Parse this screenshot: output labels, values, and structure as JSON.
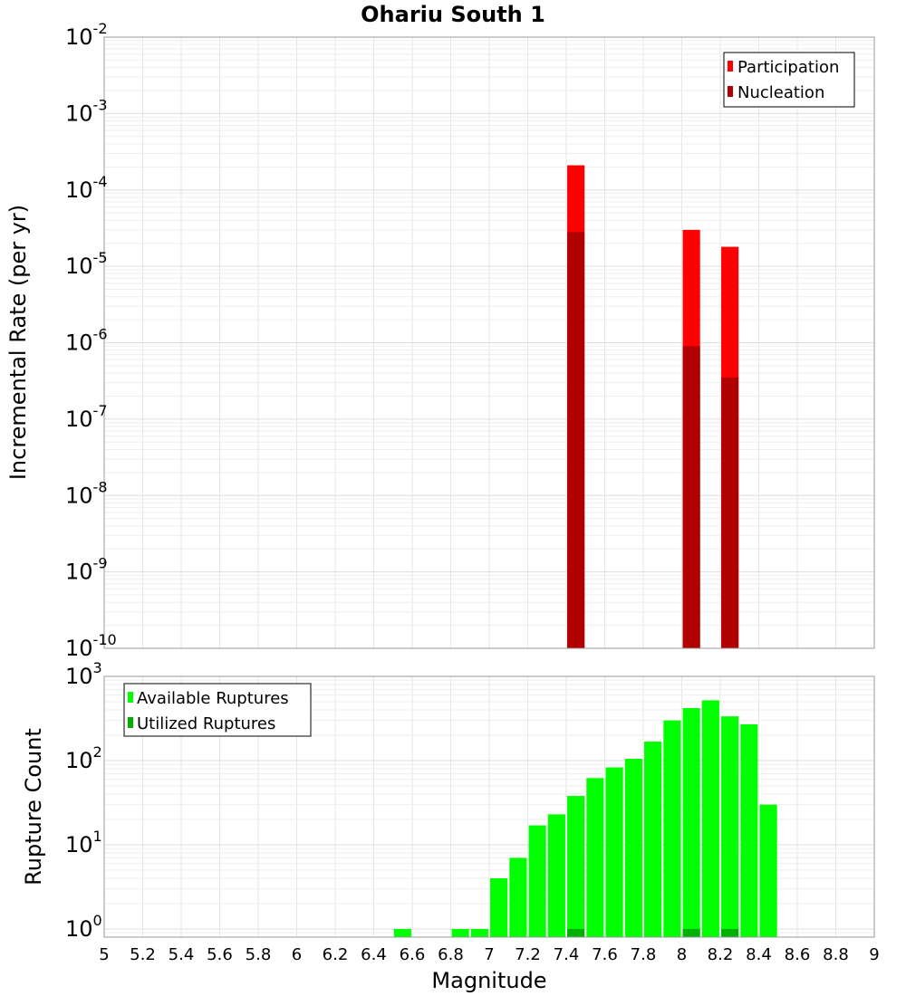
{
  "chart_data": [
    {
      "type": "bar",
      "title": "Ohariu South 1",
      "ylabel": "Incremental Rate (per yr)",
      "yscale": "log",
      "ylim": [
        1e-10,
        0.01
      ],
      "xlim": [
        5,
        9
      ],
      "bar_width": 0.1,
      "grid": true,
      "legend_position": "top-right",
      "y_ticks": [
        {
          "base": "10",
          "exp": "-2"
        },
        {
          "base": "10",
          "exp": "-3"
        },
        {
          "base": "10",
          "exp": "-4"
        },
        {
          "base": "10",
          "exp": "-5"
        },
        {
          "base": "10",
          "exp": "-6"
        },
        {
          "base": "10",
          "exp": "-7"
        },
        {
          "base": "10",
          "exp": "-8"
        },
        {
          "base": "10",
          "exp": "-9"
        },
        {
          "base": "10",
          "exp": "-10"
        }
      ],
      "series": [
        {
          "name": "Participation",
          "color": "#ff0000",
          "x": [
            7.45,
            8.05,
            8.25
          ],
          "values": [
            0.00021,
            3e-05,
            1.8e-05
          ]
        },
        {
          "name": "Nucleation",
          "color": "#b00000",
          "x": [
            7.45,
            8.05,
            8.25
          ],
          "values": [
            2.8e-05,
            9e-07,
            3.5e-07
          ]
        }
      ]
    },
    {
      "type": "bar",
      "ylabel": "Rupture Count",
      "xlabel": "Magnitude",
      "yscale": "log",
      "ylim": [
        0.8,
        1000
      ],
      "xlim": [
        5,
        9
      ],
      "bar_width": 0.1,
      "grid": true,
      "legend_position": "top-left",
      "x_ticks": [
        "5",
        "5.2",
        "5.4",
        "5.6",
        "5.8",
        "6",
        "6.2",
        "6.4",
        "6.6",
        "6.8",
        "7",
        "7.2",
        "7.4",
        "7.6",
        "7.8",
        "8",
        "8.2",
        "8.4",
        "8.6",
        "8.8",
        "9"
      ],
      "y_ticks": [
        {
          "base": "10",
          "exp": "3",
          "value": 1000
        },
        {
          "base": "10",
          "exp": "2",
          "value": 100
        },
        {
          "base": "10",
          "exp": "1",
          "value": 10
        },
        {
          "base": "10",
          "exp": "0",
          "value": 1
        }
      ],
      "series": [
        {
          "name": "Available Ruptures",
          "color": "#00ff00",
          "x": [
            6.55,
            6.85,
            6.95,
            7.05,
            7.15,
            7.25,
            7.35,
            7.45,
            7.55,
            7.65,
            7.75,
            7.85,
            7.95,
            8.05,
            8.15,
            8.25,
            8.35,
            8.45
          ],
          "values": [
            1,
            1,
            1,
            4,
            7,
            17,
            23,
            38,
            62,
            83,
            105,
            168,
            300,
            420,
            520,
            335,
            270,
            30
          ]
        },
        {
          "name": "Utilized Ruptures",
          "color": "#00b000",
          "x": [
            7.45,
            8.05,
            8.25
          ],
          "values": [
            1,
            1,
            1
          ]
        }
      ]
    }
  ]
}
